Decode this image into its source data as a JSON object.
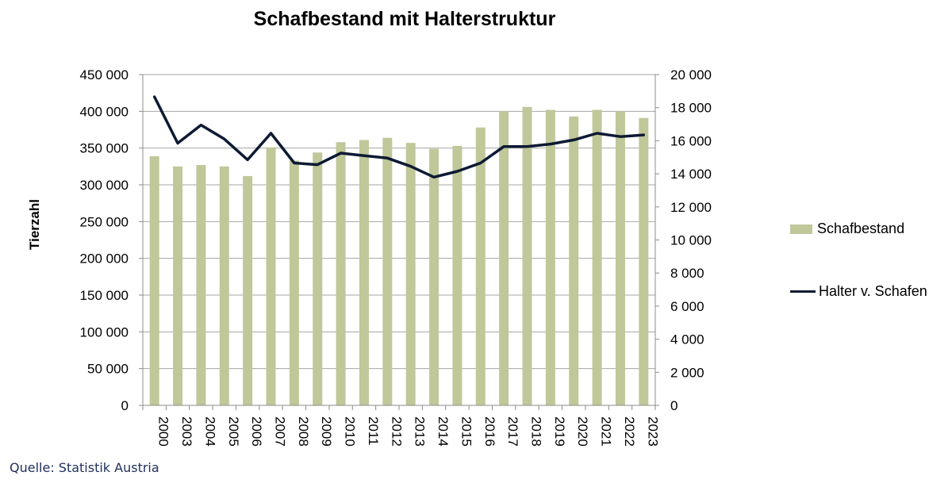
{
  "chart_data": {
    "type": "bar",
    "title": "Schafbestand mit Halterstruktur",
    "ylabel": "Tierzahl",
    "categories": [
      "2000",
      "2003",
      "2004",
      "2005",
      "2006",
      "2007",
      "2008",
      "2009",
      "2010",
      "2011",
      "2012",
      "2013",
      "2014",
      "2015",
      "2016",
      "2017",
      "2018",
      "2019",
      "2020",
      "2021",
      "2022",
      "2023"
    ],
    "series": [
      {
        "name": "Schafbestand",
        "type": "bar",
        "axis": "left",
        "color": "#c0c799",
        "values": [
          339000,
          325000,
          327000,
          325000,
          312000,
          351000,
          333000,
          344000,
          358000,
          361000,
          364000,
          357000,
          349000,
          353000,
          378000,
          400000,
          406000,
          402000,
          393000,
          402000,
          400000,
          391000
        ]
      },
      {
        "name": "Halter v. Schafen",
        "type": "line",
        "axis": "right",
        "color": "#0d1a33",
        "values": [
          18650,
          15850,
          16950,
          16100,
          14850,
          16450,
          14650,
          14550,
          15250,
          15100,
          14950,
          14450,
          13800,
          14150,
          14650,
          15650,
          15650,
          15800,
          16050,
          16450,
          16250,
          16350
        ]
      }
    ],
    "y_left": {
      "min": 0,
      "max": 450000,
      "step": 50000,
      "tick_labels": [
        "0",
        "50 000",
        "100 000",
        "150 000",
        "200 000",
        "250 000",
        "300 000",
        "350 000",
        "400 000",
        "450 000"
      ]
    },
    "y_right": {
      "min": 0,
      "max": 20000,
      "step": 2000,
      "tick_labels": [
        "0",
        "2 000",
        "4 000",
        "6 000",
        "8 000",
        "10 000",
        "12 000",
        "14 000",
        "16 000",
        "18 000",
        "20 000"
      ]
    },
    "grid": true,
    "legend_position": "right"
  },
  "footer": {
    "source": "Quelle: Statistik Austria"
  }
}
